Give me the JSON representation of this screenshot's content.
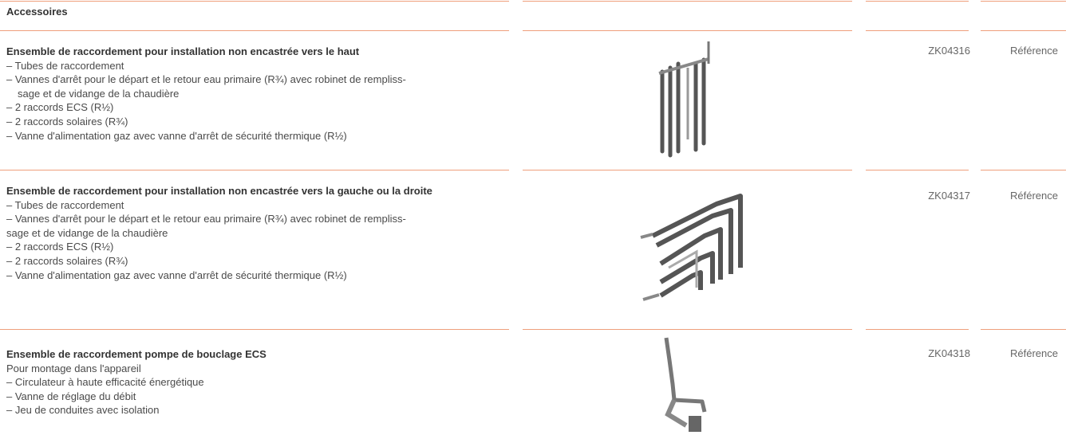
{
  "header": {
    "title": "Accessoires"
  },
  "items": [
    {
      "title": "Ensemble de raccordement pour installation non encastrée vers le haut",
      "lines": [
        "– Tubes de raccordement",
        "– Vannes d'arrêt pour le départ et le retour eau primaire (R¾) avec robinet de rempliss-",
        "sage et de vidange de la chaudière",
        "– 2 raccords ECS (R½)",
        "– 2 raccords solaires (R¾)",
        "– Vanne d'alimentation gaz avec vanne d'arrêt de sécurité thermique (R½)"
      ],
      "code": "ZK04316",
      "reference": "Référence"
    },
    {
      "title": "Ensemble de raccordement pour installation non encastrée vers la gauche ou la droite",
      "lines": [
        "–  Tubes de raccordement",
        "– Vannes d'arrêt pour le départ et le retour eau primaire (R¾) avec robinet de rempliss-",
        "sage et de vidange de la chaudière",
        "– 2 raccords ECS (R½)",
        "– 2 raccords solaires (R¾)",
        "– Vanne d'alimentation gaz avec vanne d'arrêt de sécurité thermique (R½)"
      ],
      "code": "ZK04317",
      "reference": "Référence"
    },
    {
      "title": "Ensemble de raccordement pompe de bouclage ECS",
      "lines": [
        "Pour montage dans l'appareil",
        "– Circulateur à haute efficacité énergétique",
        "–  Vanne de réglage du débit",
        "– Jeu de conduites avec isolation"
      ],
      "code": "ZK04318",
      "reference": "Référence"
    }
  ]
}
